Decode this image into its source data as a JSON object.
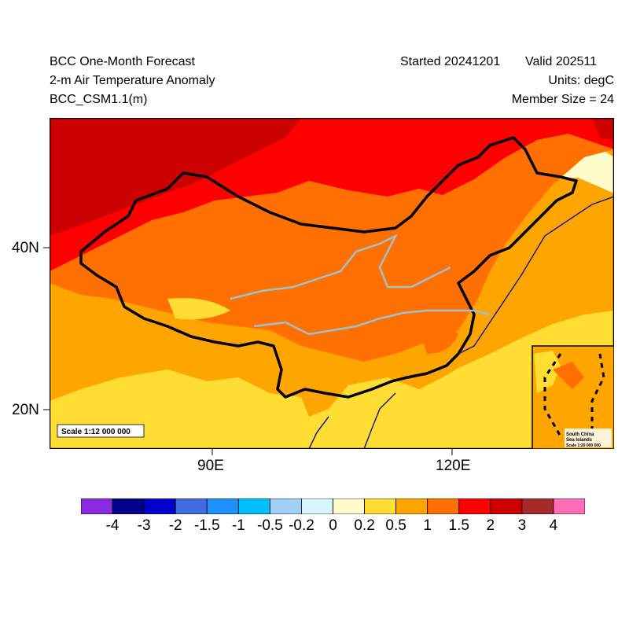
{
  "header": {
    "title_line1": "BCC One-Month Forecast",
    "title_line2": "2-m Air Temperature Anomaly",
    "title_line3": "BCC_CSM1.1(m)",
    "started": "Started 20241201",
    "valid": "Valid 202511",
    "units": "Units: degC",
    "member_size": "Member Size = 24"
  },
  "map": {
    "lat_labels": [
      "40N",
      "20N"
    ],
    "lon_labels": [
      "90E",
      "120E"
    ],
    "scale_main": "Scale 1:12 000 000",
    "inset_title_1": "South China",
    "inset_title_2": "Sea Islands",
    "inset_scale": "Scale 1:20 000 000",
    "colors": {
      "bg": "#ffa500",
      "border": "#000000",
      "coast": "#1b1b8f",
      "river": "#9ec0d0"
    }
  },
  "colorbar": {
    "labels": [
      "-4",
      "-3",
      "-2",
      "-1.5",
      "-1",
      "-0.5",
      "-0.2",
      "0",
      "0.2",
      "0.5",
      "1",
      "1.5",
      "2",
      "3",
      "4"
    ],
    "colors": [
      "#8a2be2",
      "#00008b",
      "#0000cd",
      "#4169e1",
      "#1e90ff",
      "#00bfff",
      "#a0d0f8",
      "#d8f4fc",
      "#fffccc",
      "#ffdd33",
      "#ffa500",
      "#ff7000",
      "#ff0000",
      "#cc0000",
      "#a52a2a",
      "#ff6eb4"
    ]
  }
}
